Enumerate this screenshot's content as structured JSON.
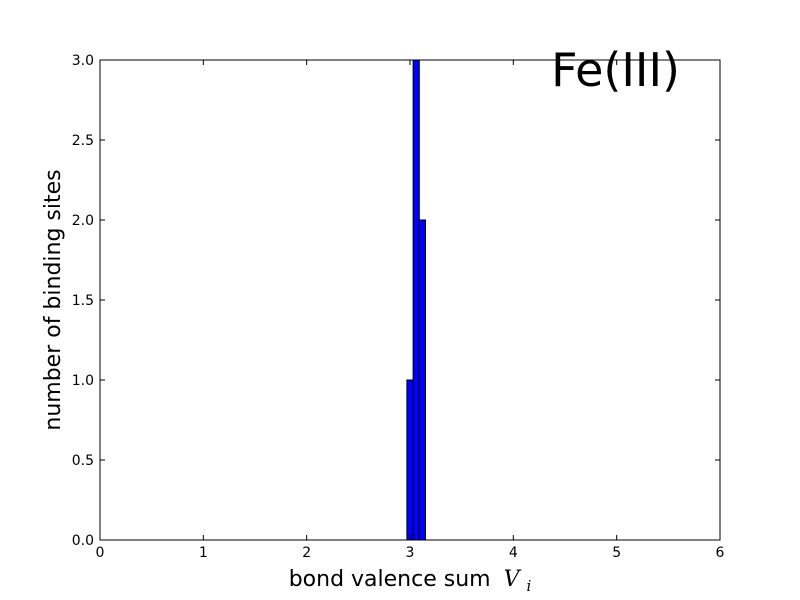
{
  "chart_data": {
    "type": "bar",
    "annotation": "Fe(III)",
    "xlabel": "bond valence sum",
    "xlabel_symbol": "V",
    "xlabel_subscript": "i",
    "ylabel": "number of binding sites",
    "xlim": [
      0,
      6
    ],
    "ylim": [
      0,
      3
    ],
    "xticks": [
      "0",
      "1",
      "2",
      "3",
      "4",
      "5",
      "6"
    ],
    "yticks": [
      "0.0",
      "0.5",
      "1.0",
      "1.5",
      "2.0",
      "2.5",
      "3.0"
    ],
    "grid": false,
    "bar_color": "#0000ff",
    "bins": [
      {
        "x0": 2.97,
        "x1": 3.03,
        "value": 1
      },
      {
        "x0": 3.03,
        "x1": 3.09,
        "value": 3
      },
      {
        "x0": 3.09,
        "x1": 3.15,
        "value": 2
      }
    ]
  }
}
